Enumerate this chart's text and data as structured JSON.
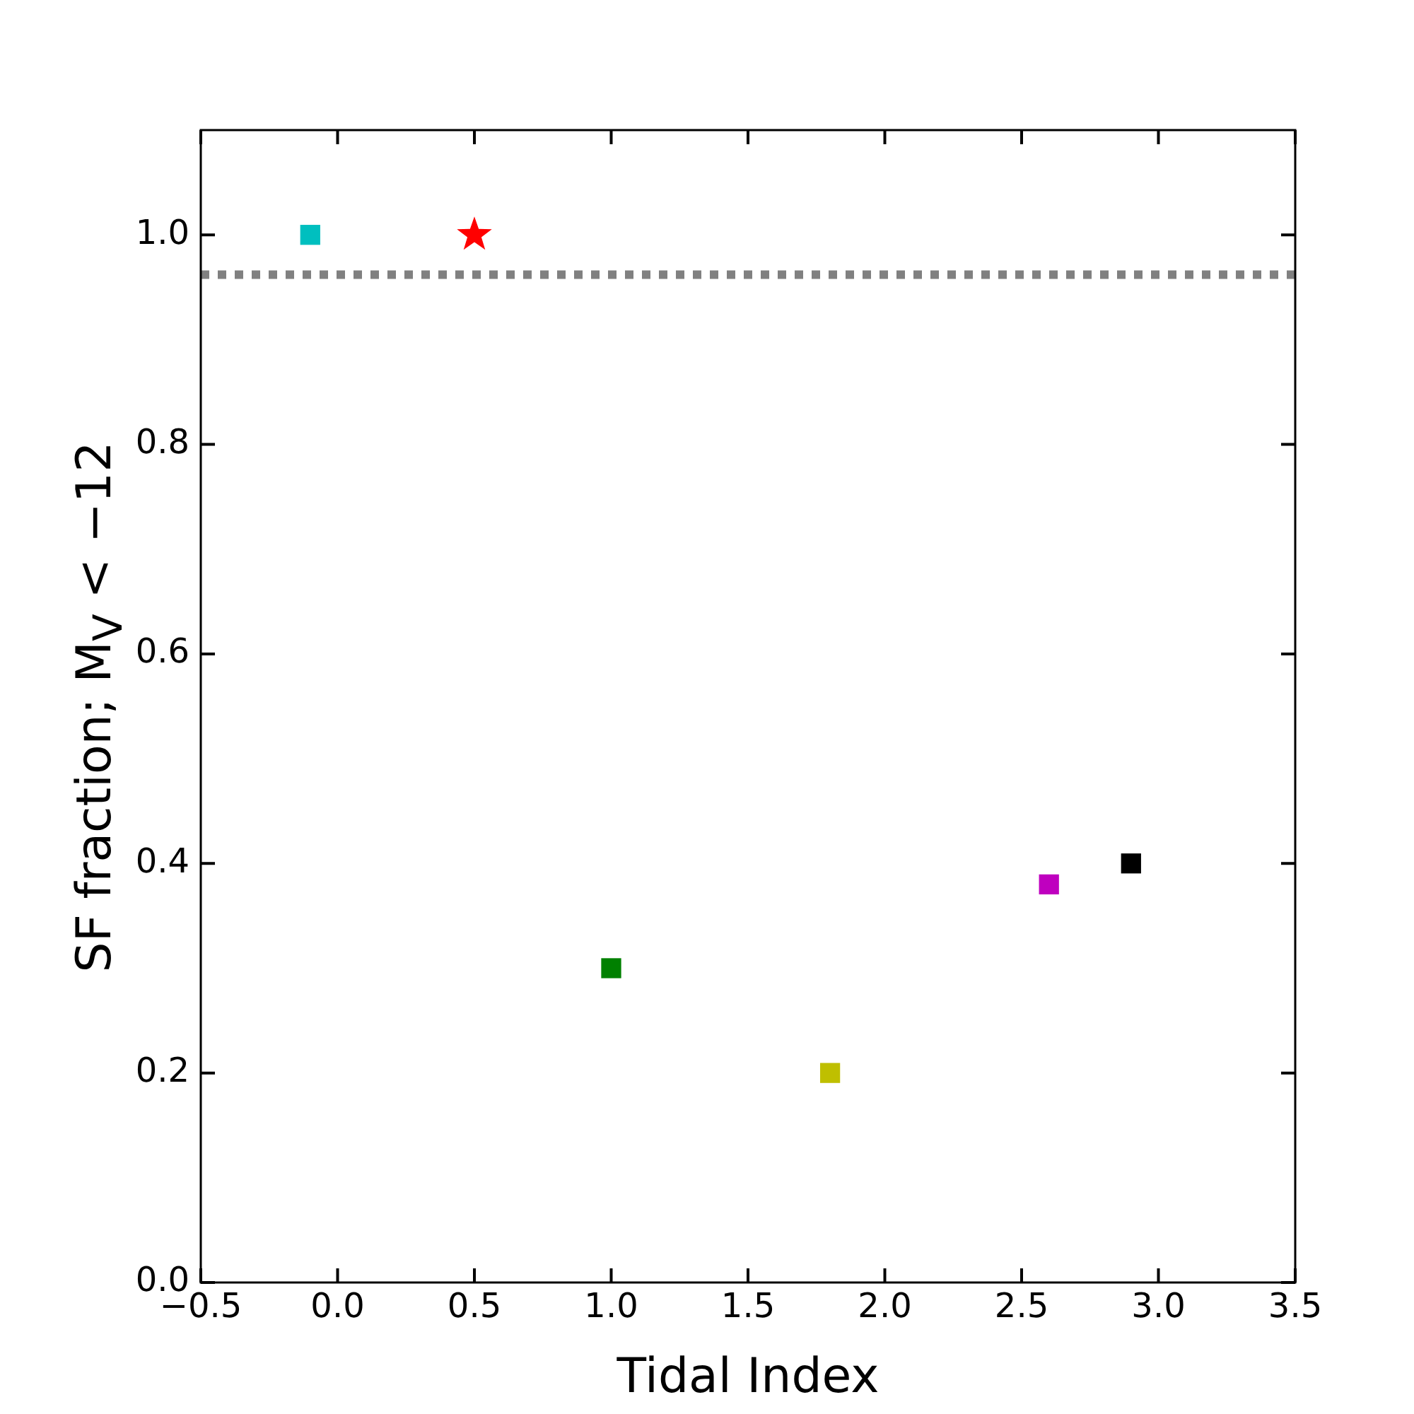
{
  "chart_data": {
    "type": "scatter",
    "xlabel": "Tidal Index",
    "ylabel": "SF fraction; M$_{V}$ < −12",
    "xlim": [
      -0.5,
      3.5
    ],
    "xticks": [
      {
        "value": -0.5,
        "label": "−0.5"
      },
      {
        "value": 0,
        "label": "0.0"
      },
      0.5,
      {
        "value": 1,
        "label": "1.0"
      },
      1.5,
      {
        "value": 2,
        "label": "2.0"
      },
      2.5,
      {
        "value": 3,
        "label": "3.0"
      },
      3.5
    ],
    "ylim": [
      0,
      1.1
    ],
    "yticks": [
      {
        "value": 0,
        "label": "0.0"
      },
      0.2,
      0.4,
      0.6,
      0.8,
      {
        "value": 1,
        "label": "1.0"
      }
    ],
    "grid": false,
    "legend": false,
    "series": [
      {
        "type": "scatter",
        "marker": "square",
        "x": [
          -0.1,
          1.0,
          1.8,
          2.6,
          2.9
        ],
        "values": [
          1.0,
          0.3,
          0.2,
          0.38,
          0.4
        ],
        "colors": [
          "#00bfbf",
          "#008000",
          "#bfbf00",
          "#bf00bf",
          "#000000"
        ]
      },
      {
        "type": "scatter",
        "marker": "star",
        "x": [
          0.5
        ],
        "values": [
          1.0
        ],
        "color": "#ff0000"
      }
    ],
    "ref_lines": [
      {
        "axis": "y",
        "value": 0.962,
        "color": "#808080",
        "line_style": "dotted"
      }
    ]
  }
}
